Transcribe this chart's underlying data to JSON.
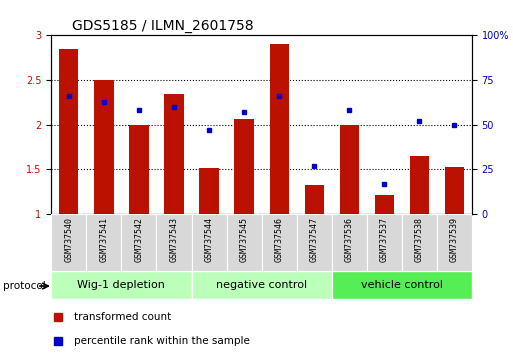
{
  "title": "GDS5185 / ILMN_2601758",
  "samples": [
    "GSM737540",
    "GSM737541",
    "GSM737542",
    "GSM737543",
    "GSM737544",
    "GSM737545",
    "GSM737546",
    "GSM737547",
    "GSM737536",
    "GSM737537",
    "GSM737538",
    "GSM737539"
  ],
  "red_values": [
    2.85,
    2.5,
    2.0,
    2.35,
    1.52,
    2.07,
    2.9,
    1.33,
    2.0,
    1.22,
    1.65,
    1.53
  ],
  "blue_values": [
    66,
    63,
    58,
    60,
    47,
    57,
    66,
    27,
    58,
    17,
    52,
    50
  ],
  "bar_bottom": 1.0,
  "ylim_left": [
    1.0,
    3.0
  ],
  "ylim_right": [
    0,
    100
  ],
  "yticks_left": [
    1.0,
    1.5,
    2.0,
    2.5,
    3.0
  ],
  "yticks_right": [
    0,
    25,
    50,
    75,
    100
  ],
  "ytick_labels_right": [
    "0",
    "25",
    "50",
    "75",
    "100%"
  ],
  "groups": [
    {
      "label": "Wig-1 depletion",
      "indices": [
        0,
        1,
        2,
        3
      ]
    },
    {
      "label": "negative control",
      "indices": [
        4,
        5,
        6,
        7
      ]
    },
    {
      "label": "vehicle control",
      "indices": [
        8,
        9,
        10,
        11
      ]
    }
  ],
  "group_colors": [
    "#aaffaa",
    "#aaffaa",
    "#44cc44"
  ],
  "bar_color": "#bb1100",
  "blue_color": "#0000cc",
  "bar_width": 0.55,
  "bg_color": "#ffffff",
  "protocol_label": "protocol",
  "legend_red": "transformed count",
  "legend_blue": "percentile rank within the sample",
  "title_fontsize": 10,
  "tick_label_fontsize": 7,
  "group_label_fontsize": 8,
  "sample_fontsize": 6
}
